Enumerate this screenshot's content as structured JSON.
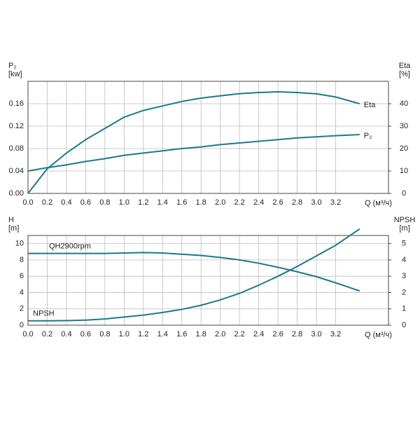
{
  "chart_data": [
    {
      "type": "line",
      "ylabel": [
        "P₂",
        "[kw]"
      ],
      "y2label": [
        "Eta",
        "[%]"
      ],
      "xlabel": "Q (м³/ч)",
      "x": [
        0,
        0.2,
        0.4,
        0.6,
        0.8,
        1.0,
        1.2,
        1.4,
        1.6,
        1.8,
        2.0,
        2.2,
        2.4,
        2.6,
        2.8,
        3.0,
        3.2,
        3.45
      ],
      "series": [
        {
          "name": "Eta",
          "color": "#1b7a8a",
          "axis": "y2",
          "values": [
            0,
            11,
            18,
            24,
            29,
            34,
            37,
            39,
            41,
            42.5,
            43.5,
            44.5,
            45,
            45.3,
            45,
            44.4,
            43,
            40
          ]
        },
        {
          "name": "P₂",
          "color": "#1b7a8a",
          "values": [
            0.04,
            0.046,
            0.051,
            0.057,
            0.062,
            0.068,
            0.072,
            0.076,
            0.08,
            0.083,
            0.087,
            0.09,
            0.093,
            0.096,
            0.099,
            0.101,
            0.103,
            0.105
          ]
        }
      ],
      "xlim": [
        0,
        3.75
      ],
      "xticks": [
        {
          "value": 0,
          "label": "0.0"
        },
        0.2,
        0.4,
        0.6,
        0.8,
        {
          "value": 1,
          "label": "1.0"
        },
        1.2,
        1.4,
        1.6,
        1.8,
        {
          "value": 2,
          "label": "2.0"
        },
        2.2,
        2.4,
        2.6,
        2.8,
        {
          "value": 3,
          "label": "3.0"
        },
        3.2
      ],
      "ylim": [
        0,
        0.2
      ],
      "yticks": [
        {
          "value": 0,
          "label": "0.00"
        },
        {
          "value": 0.04,
          "label": "0.04"
        },
        {
          "value": 0.08,
          "label": "0.08"
        },
        {
          "value": 0.12,
          "label": "0.12"
        },
        {
          "value": 0.16,
          "label": "0.16"
        }
      ],
      "y2lim": [
        0,
        50
      ],
      "y2ticks": [
        0,
        10,
        20,
        30,
        40
      ],
      "grid": true
    },
    {
      "type": "line",
      "ylabel": [
        "H",
        "[m]"
      ],
      "y2label": [
        "NPSH",
        "[m]"
      ],
      "xlabel": "Q (м³/ч)",
      "x": [
        0,
        0.2,
        0.4,
        0.6,
        0.8,
        1.0,
        1.2,
        1.4,
        1.6,
        1.8,
        2.0,
        2.2,
        2.4,
        2.6,
        2.8,
        3.0,
        3.2,
        3.45
      ],
      "series": [
        {
          "name": "QH2900rpm",
          "color": "#1b7a8a",
          "values": [
            8.8,
            8.8,
            8.8,
            8.8,
            8.8,
            8.85,
            8.9,
            8.85,
            8.7,
            8.55,
            8.3,
            8.0,
            7.6,
            7.1,
            6.55,
            5.95,
            5.2,
            4.2
          ]
        },
        {
          "name": "NPSH",
          "color": "#1b7a8a",
          "axis": "y2",
          "values": [
            0.27,
            0.27,
            0.28,
            0.31,
            0.38,
            0.5,
            0.62,
            0.78,
            0.97,
            1.22,
            1.55,
            1.95,
            2.45,
            3.0,
            3.6,
            4.25,
            4.9,
            5.9
          ]
        }
      ],
      "xlim": [
        0,
        3.75
      ],
      "xticks": [
        {
          "value": 0,
          "label": "0.0"
        },
        0.2,
        0.4,
        0.6,
        0.8,
        {
          "value": 1,
          "label": "1.0"
        },
        1.2,
        1.4,
        1.6,
        1.8,
        {
          "value": 2,
          "label": "2.0"
        },
        2.2,
        2.4,
        2.6,
        2.8,
        {
          "value": 3,
          "label": "3.0"
        },
        3.2
      ],
      "ylim": [
        0,
        11
      ],
      "yticks": [
        0,
        2,
        4,
        6,
        8,
        10
      ],
      "y2lim": [
        0,
        5.5
      ],
      "y2ticks": [
        0,
        1,
        2,
        3,
        4,
        5
      ],
      "grid": true
    }
  ]
}
